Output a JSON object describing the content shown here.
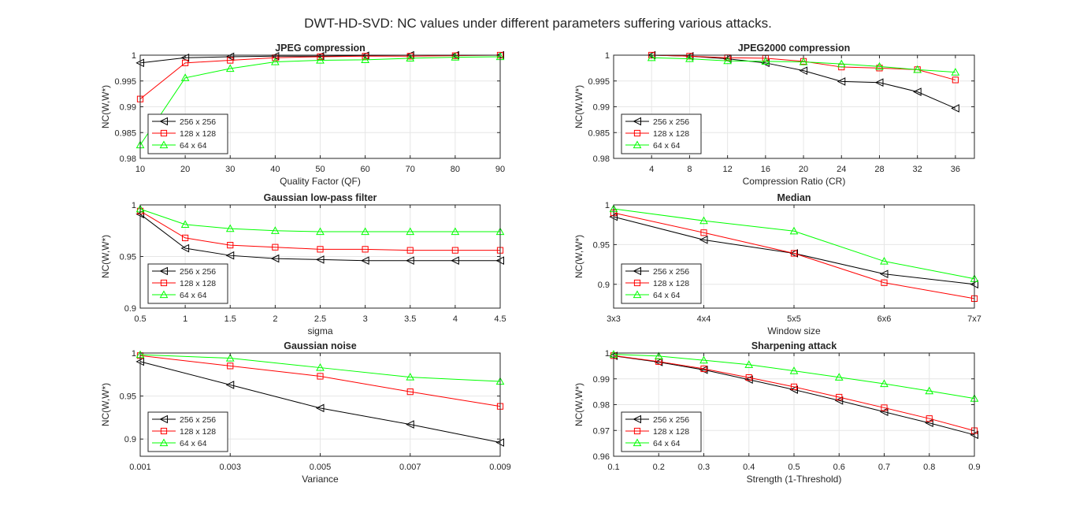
{
  "figure": {
    "title": "DWT-HD-SVD: NC values under different parameters suffering various attacks."
  },
  "series_styles": [
    {
      "color": "#000000",
      "marker": "triangle-left"
    },
    {
      "color": "#ff0000",
      "marker": "square"
    },
    {
      "color": "#00ff00",
      "marker": "triangle-up"
    }
  ],
  "chart_data": [
    {
      "type": "line",
      "title": "JPEG compression",
      "xlabel": "Quality Factor (QF)",
      "ylabel": "NC(W,W*)",
      "x": [
        10,
        20,
        30,
        40,
        50,
        60,
        70,
        80,
        90
      ],
      "xlim": [
        10,
        90
      ],
      "xticks": [
        10,
        20,
        30,
        40,
        50,
        60,
        70,
        80,
        90
      ],
      "xtick_labels": [
        "10",
        "20",
        "30",
        "40",
        "50",
        "60",
        "70",
        "80",
        "90"
      ],
      "ylim": [
        0.98,
        1
      ],
      "yticks": [
        0.98,
        0.985,
        0.99,
        0.995,
        1
      ],
      "ytick_labels": [
        "0.98",
        "0.985",
        "0.99",
        "0.995",
        "1"
      ],
      "grid": true,
      "legend": "bottom-left",
      "series": [
        {
          "name": "256 x 256",
          "values": [
            0.9985,
            0.9995,
            0.9997,
            0.9998,
            0.9998,
            0.9999,
            1.0,
            1.0,
            1.0
          ]
        },
        {
          "name": "128 x 128",
          "values": [
            0.9915,
            0.9985,
            0.999,
            0.9995,
            0.9997,
            0.9998,
            0.9998,
            0.9999,
            1.0
          ]
        },
        {
          "name": "64 x 64",
          "values": [
            0.9826,
            0.9956,
            0.9974,
            0.9987,
            0.999,
            0.9991,
            0.9994,
            0.9996,
            0.9997
          ]
        }
      ]
    },
    {
      "type": "line",
      "title": "JPEG2000 compression",
      "xlabel": "Compression Ratio (CR)",
      "ylabel": "NC(W,W*)",
      "x": [
        4,
        8,
        12,
        16,
        20,
        24,
        28,
        32,
        36
      ],
      "xlim": [
        0,
        38
      ],
      "xticks": [
        4,
        8,
        12,
        16,
        20,
        24,
        28,
        32,
        36
      ],
      "xtick_labels": [
        "4",
        "8",
        "12",
        "16",
        "20",
        "24",
        "28",
        "32",
        "36"
      ],
      "ylim": [
        0.98,
        1
      ],
      "yticks": [
        0.98,
        0.985,
        0.99,
        0.995,
        1
      ],
      "ytick_labels": [
        "0.98",
        "0.985",
        "0.99",
        "0.995",
        "1"
      ],
      "grid": true,
      "legend": "bottom-left",
      "series": [
        {
          "name": "256 x 256",
          "values": [
            1.0,
            0.9998,
            0.9993,
            0.9985,
            0.997,
            0.9949,
            0.9947,
            0.9929,
            0.9897
          ]
        },
        {
          "name": "128 x 128",
          "values": [
            1.0,
            0.9998,
            0.9995,
            0.9994,
            0.9988,
            0.9977,
            0.9975,
            0.9972,
            0.9952
          ]
        },
        {
          "name": "64 x 64",
          "values": [
            0.9995,
            0.9993,
            0.9989,
            0.9988,
            0.9987,
            0.9983,
            0.9978,
            0.9972,
            0.9967
          ]
        }
      ]
    },
    {
      "type": "line",
      "title": "Gaussian low-pass filter",
      "xlabel": "sigma",
      "ylabel": "NC(W,W*)",
      "x": [
        0.5,
        1,
        1.5,
        2,
        2.5,
        3,
        3.5,
        4,
        4.5
      ],
      "xlim": [
        0.5,
        4.5
      ],
      "xticks": [
        0.5,
        1,
        1.5,
        2,
        2.5,
        3,
        3.5,
        4,
        4.5
      ],
      "xtick_labels": [
        "0.5",
        "1",
        "1.5",
        "2",
        "2.5",
        "3",
        "3.5",
        "4",
        "4.5"
      ],
      "ylim": [
        0.9,
        1
      ],
      "yticks": [
        0.9,
        0.95,
        1
      ],
      "ytick_labels": [
        "0.9",
        "0.95",
        "1"
      ],
      "grid": true,
      "legend": "bottom-left",
      "series": [
        {
          "name": "256 x 256",
          "values": [
            0.991,
            0.958,
            0.951,
            0.948,
            0.947,
            0.946,
            0.946,
            0.946,
            0.946
          ]
        },
        {
          "name": "128 x 128",
          "values": [
            0.994,
            0.968,
            0.961,
            0.959,
            0.957,
            0.957,
            0.956,
            0.956,
            0.956
          ]
        },
        {
          "name": "64 x 64",
          "values": [
            0.996,
            0.981,
            0.977,
            0.975,
            0.974,
            0.974,
            0.974,
            0.974,
            0.974
          ]
        }
      ]
    },
    {
      "type": "line",
      "title": "Median",
      "xlabel": "Window size",
      "ylabel": "NC(W,W*)",
      "x": [
        1,
        2,
        3,
        4,
        5
      ],
      "xlim": [
        1,
        5
      ],
      "xticks": [
        1,
        2,
        3,
        4,
        5
      ],
      "xtick_labels": [
        "3x3",
        "4x4",
        "5x5",
        "6x6",
        "7x7"
      ],
      "ylim": [
        0.87,
        1
      ],
      "yticks": [
        0.9,
        0.95,
        1
      ],
      "ytick_labels": [
        "0.9",
        "0.95",
        "1"
      ],
      "grid": true,
      "legend": "bottom-left",
      "series": [
        {
          "name": "256 x 256",
          "values": [
            0.985,
            0.956,
            0.939,
            0.913,
            0.9
          ]
        },
        {
          "name": "128 x 128",
          "values": [
            0.99,
            0.965,
            0.939,
            0.902,
            0.882
          ]
        },
        {
          "name": "64 x 64",
          "values": [
            0.995,
            0.98,
            0.967,
            0.929,
            0.907
          ]
        }
      ]
    },
    {
      "type": "line",
      "title": "Gaussian noise",
      "xlabel": "Variance",
      "ylabel": "NC(W,W*)",
      "x": [
        0.001,
        0.003,
        0.005,
        0.007,
        0.009
      ],
      "xlim": [
        0.001,
        0.009
      ],
      "xticks": [
        0.001,
        0.003,
        0.005,
        0.007,
        0.009
      ],
      "xtick_labels": [
        "0.001",
        "0.003",
        "0.005",
        "0.007",
        "0.009"
      ],
      "ylim": [
        0.88,
        1
      ],
      "yticks": [
        0.9,
        0.95,
        1
      ],
      "ytick_labels": [
        "0.9",
        "0.95",
        "1"
      ],
      "grid": true,
      "legend": "bottom-left",
      "series": [
        {
          "name": "256 x 256",
          "values": [
            0.99,
            0.963,
            0.936,
            0.917,
            0.896
          ]
        },
        {
          "name": "128 x 128",
          "values": [
            0.997,
            0.985,
            0.973,
            0.955,
            0.938
          ]
        },
        {
          "name": "64 x 64",
          "values": [
            0.998,
            0.994,
            0.983,
            0.972,
            0.967
          ]
        }
      ]
    },
    {
      "type": "line",
      "title": "Sharpening attack",
      "xlabel": "Strength (1-Threshold)",
      "ylabel": "NC(W,W*)",
      "x": [
        0.1,
        0.2,
        0.3,
        0.4,
        0.5,
        0.6,
        0.7,
        0.8,
        0.9
      ],
      "xlim": [
        0.1,
        0.9
      ],
      "xticks": [
        0.1,
        0.2,
        0.3,
        0.4,
        0.5,
        0.6,
        0.7,
        0.8,
        0.9
      ],
      "xtick_labels": [
        "0.1",
        "0.2",
        "0.3",
        "0.4",
        "0.5",
        "0.6",
        "0.7",
        "0.8",
        "0.9"
      ],
      "ylim": [
        0.96,
        1
      ],
      "yticks": [
        0.96,
        0.97,
        0.98,
        0.99,
        1
      ],
      "ytick_labels": [
        "0.96",
        "0.97",
        "0.98",
        "0.99",
        "1"
      ],
      "grid": true,
      "legend": "bottom-left",
      "series": [
        {
          "name": "256 x 256",
          "values": [
            0.9989,
            0.9965,
            0.9935,
            0.9897,
            0.9858,
            0.9816,
            0.9772,
            0.9729,
            0.9683
          ]
        },
        {
          "name": "128 x 128",
          "values": [
            0.999,
            0.9967,
            0.9939,
            0.9905,
            0.9869,
            0.9829,
            0.9788,
            0.9746,
            0.9699
          ]
        },
        {
          "name": "64 x 64",
          "values": [
            0.9995,
            0.9988,
            0.9972,
            0.9955,
            0.9931,
            0.9906,
            0.9881,
            0.9853,
            0.9824
          ]
        }
      ]
    }
  ]
}
